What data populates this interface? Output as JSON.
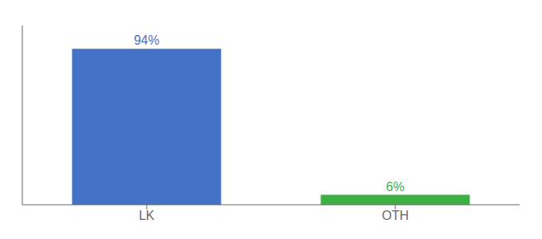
{
  "chart_data": {
    "type": "bar",
    "categories": [
      "LK",
      "OTH"
    ],
    "values": [
      94,
      6
    ],
    "value_labels": [
      "94%",
      "6%"
    ],
    "colors": [
      "#4472c4",
      "#3cb043"
    ],
    "ylim": [
      0,
      108
    ],
    "yticks": [],
    "data_labels": true,
    "tick_labels": "x",
    "grid": false
  }
}
